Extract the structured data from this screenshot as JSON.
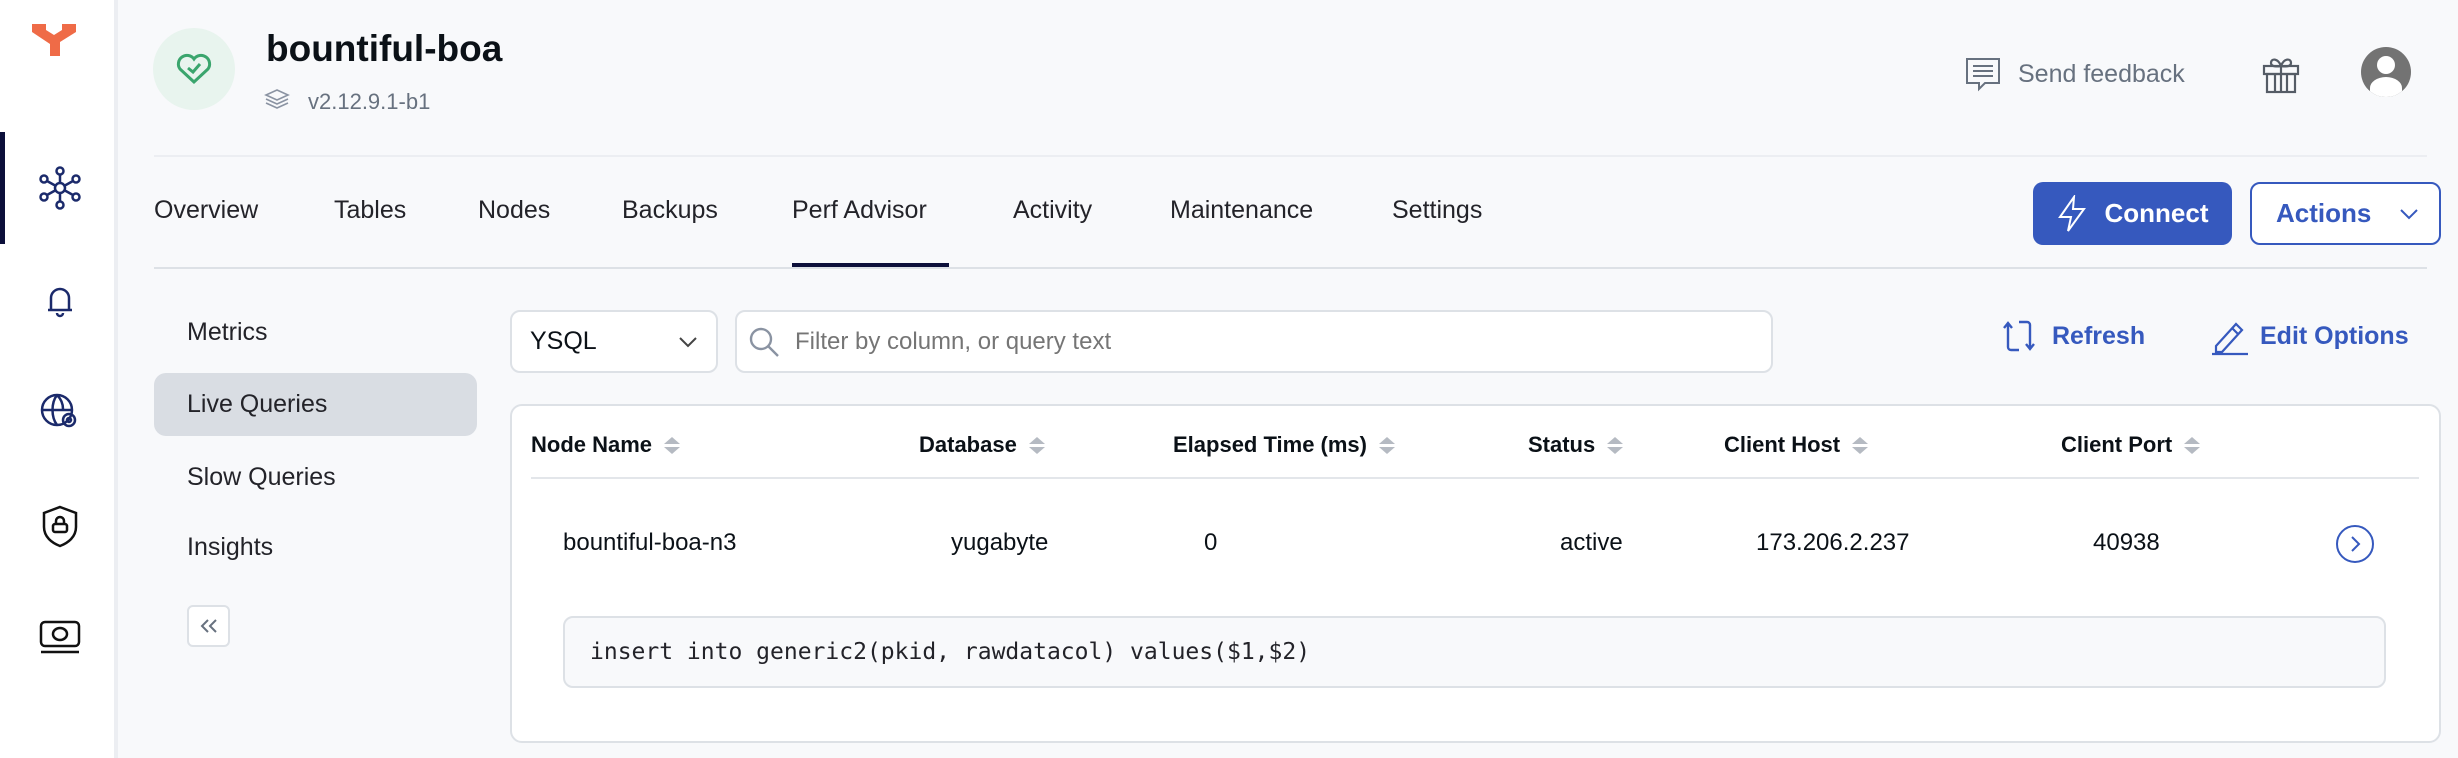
{
  "header": {
    "title": "bountiful-boa",
    "version": "v2.12.9.1-b1",
    "send_feedback": "Send feedback"
  },
  "tabs": [
    {
      "label": "Overview"
    },
    {
      "label": "Tables"
    },
    {
      "label": "Nodes"
    },
    {
      "label": "Backups"
    },
    {
      "label": "Perf Advisor",
      "active": true
    },
    {
      "label": "Activity"
    },
    {
      "label": "Maintenance"
    },
    {
      "label": "Settings"
    }
  ],
  "buttons": {
    "connect": "Connect",
    "actions": "Actions",
    "refresh": "Refresh",
    "edit_options": "Edit Options"
  },
  "left_nav": [
    {
      "label": "Metrics"
    },
    {
      "label": "Live Queries",
      "active": true
    },
    {
      "label": "Slow Queries"
    },
    {
      "label": "Insights"
    }
  ],
  "filter": {
    "api": "YSQL",
    "placeholder": "Filter by column, or query text"
  },
  "table": {
    "columns": [
      "Node Name",
      "Database",
      "Elapsed Time (ms)",
      "Status",
      "Client Host",
      "Client Port"
    ],
    "rows": [
      {
        "node_name": "bountiful-boa-n3",
        "database": "yugabyte",
        "elapsed": "0",
        "status": "active",
        "client_host": "173.206.2.237",
        "client_port": "40938",
        "query": "insert into generic2(pkid, rawdatacol) values($1,$2)"
      }
    ]
  },
  "colors": {
    "accent": "#3659be",
    "logo": "#ef6b47",
    "health": "#3aa56d"
  }
}
